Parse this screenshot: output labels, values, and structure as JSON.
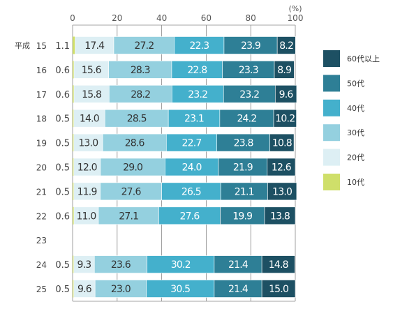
{
  "chart_data": {
    "type": "bar",
    "orientation": "horizontal",
    "stacked": true,
    "unit": "(%)",
    "xlim": [
      0,
      100
    ],
    "xticks": [
      "0",
      "20",
      "40",
      "60",
      "80",
      "100"
    ],
    "era_label": "平成",
    "categories": [
      "15",
      "16",
      "17",
      "18",
      "19",
      "20",
      "21",
      "22",
      "23",
      "24",
      "25"
    ],
    "series": [
      {
        "name": "10代",
        "color": "#cfdf6a",
        "values": [
          1.1,
          0.6,
          0.6,
          0.5,
          0.5,
          0.5,
          0.5,
          0.6,
          null,
          0.5,
          0.5
        ]
      },
      {
        "name": "20代",
        "color": "#ddeff4",
        "values": [
          17.4,
          15.6,
          15.8,
          14.0,
          13.0,
          12.0,
          11.9,
          11.0,
          null,
          9.3,
          9.6
        ]
      },
      {
        "name": "30代",
        "color": "#94d0df",
        "values": [
          27.2,
          28.3,
          28.2,
          28.5,
          28.6,
          29.0,
          27.6,
          27.1,
          null,
          23.6,
          23.0
        ]
      },
      {
        "name": "40代",
        "color": "#44b0cc",
        "values": [
          22.3,
          22.8,
          23.2,
          23.1,
          22.7,
          24.0,
          26.5,
          27.6,
          null,
          30.2,
          30.5
        ]
      },
      {
        "name": "50代",
        "color": "#2e7f96",
        "values": [
          23.9,
          23.3,
          23.2,
          24.2,
          23.8,
          21.9,
          21.1,
          19.9,
          null,
          21.4,
          21.4
        ]
      },
      {
        "name": "60代以上",
        "color": "#1d5063",
        "values": [
          8.2,
          8.9,
          9.6,
          10.2,
          10.8,
          12.6,
          13.0,
          13.8,
          null,
          14.8,
          15.0
        ]
      }
    ],
    "data_labels": {
      "10代": [
        "1.1",
        "0.6",
        "0.6",
        "0.5",
        "0.5",
        "0.5",
        "0.5",
        "0.6",
        "",
        "0.5",
        "0.5"
      ],
      "20代": [
        "17.4",
        "15.6",
        "15.8",
        "14.0",
        "13.0",
        "12.0",
        "11.9",
        "11.0",
        "",
        "9.3",
        "9.6"
      ],
      "30代": [
        "27.2",
        "28.3",
        "28.2",
        "28.5",
        "28.6",
        "29.0",
        "27.6",
        "27.1",
        "",
        "23.6",
        "23.0"
      ],
      "40代": [
        "22.3",
        "22.8",
        "23.2",
        "23.1",
        "22.7",
        "24.0",
        "26.5",
        "27.6",
        "",
        "30.2",
        "30.5"
      ],
      "50代": [
        "23.9",
        "23.3",
        "23.2",
        "24.2",
        "23.8",
        "21.9",
        "21.1",
        "19.9",
        "",
        "21.4",
        "21.4"
      ],
      "60代以上": [
        "8.2",
        "8.9",
        "9.6",
        "10.2",
        "10.8",
        "12.6",
        "13.0",
        "13.8",
        "",
        "14.8",
        "15.0"
      ]
    },
    "legend_order": [
      "60代以上",
      "50代",
      "40代",
      "30代",
      "20代",
      "10代"
    ],
    "legend_position": "right",
    "grid": true,
    "gridline_color": "#888888"
  }
}
